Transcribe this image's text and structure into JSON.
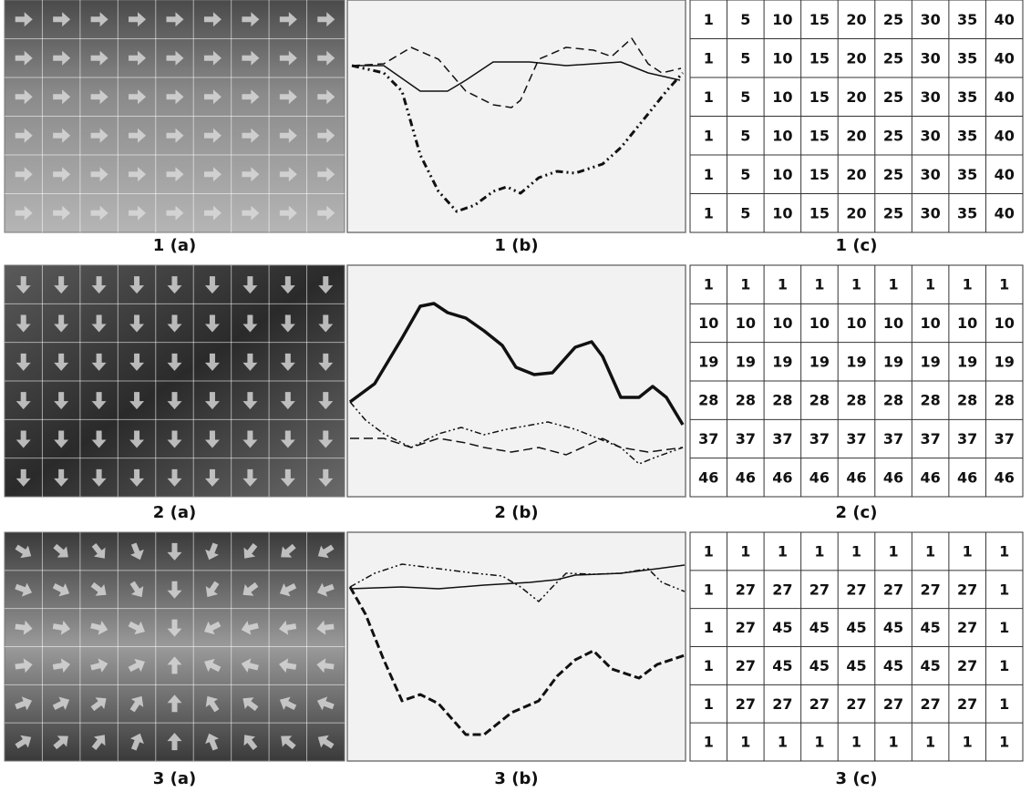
{
  "panels": [
    {
      "image_label": "1 (a)",
      "plot_label": "1 (b)",
      "table_label": "1 (c)",
      "table": [
        [
          1,
          5,
          10,
          15,
          20,
          25,
          30,
          35,
          40
        ],
        [
          1,
          5,
          10,
          15,
          20,
          25,
          30,
          35,
          40
        ],
        [
          1,
          5,
          10,
          15,
          20,
          25,
          30,
          35,
          40
        ],
        [
          1,
          5,
          10,
          15,
          20,
          25,
          30,
          35,
          40
        ],
        [
          1,
          5,
          10,
          15,
          20,
          25,
          30,
          35,
          40
        ],
        [
          1,
          5,
          10,
          15,
          20,
          25,
          30,
          35,
          40
        ]
      ]
    },
    {
      "image_label": "2 (a)",
      "plot_label": "2 (b)",
      "table_label": "2 (c)",
      "table": [
        [
          1,
          1,
          1,
          1,
          1,
          1,
          1,
          1,
          1
        ],
        [
          10,
          10,
          10,
          10,
          10,
          10,
          10,
          10,
          10
        ],
        [
          19,
          19,
          19,
          19,
          19,
          19,
          19,
          19,
          19
        ],
        [
          28,
          28,
          28,
          28,
          28,
          28,
          28,
          28,
          28
        ],
        [
          37,
          37,
          37,
          37,
          37,
          37,
          37,
          37,
          37
        ],
        [
          46,
          46,
          46,
          46,
          46,
          46,
          46,
          46,
          46
        ]
      ]
    },
    {
      "image_label": "3 (a)",
      "plot_label": "3 (b)",
      "table_label": "3 (c)",
      "table": [
        [
          1,
          1,
          1,
          1,
          1,
          1,
          1,
          1,
          1
        ],
        [
          1,
          27,
          27,
          27,
          27,
          27,
          27,
          27,
          1
        ],
        [
          1,
          27,
          45,
          45,
          45,
          45,
          45,
          27,
          1
        ],
        [
          1,
          27,
          45,
          45,
          45,
          45,
          45,
          27,
          1
        ],
        [
          1,
          27,
          27,
          27,
          27,
          27,
          27,
          27,
          1
        ],
        [
          1,
          1,
          1,
          1,
          1,
          1,
          1,
          1,
          1
        ]
      ]
    }
  ]
}
